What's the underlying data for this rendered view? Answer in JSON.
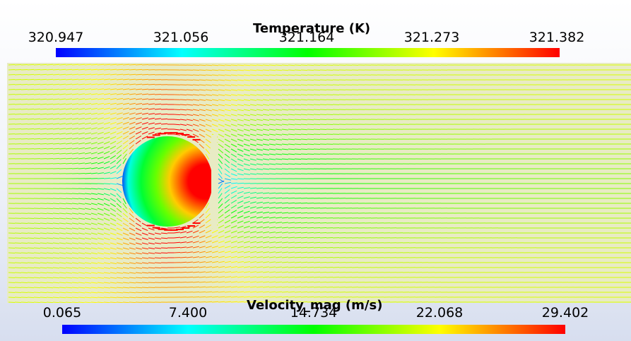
{
  "temperature_legend": {
    "title": "Temperature (K)",
    "ticks": [
      "320.947",
      "321.056",
      "321.164",
      "321.273",
      "321.382"
    ]
  },
  "velocity_legend": {
    "title": "Velocity_mag (m/s)",
    "ticks": [
      "0.065",
      "7.400",
      "14.734",
      "22.068",
      "29.402"
    ]
  },
  "colormap": [
    "#0000ff",
    "#00ffff",
    "#00ff00",
    "#ffff00",
    "#ff0000"
  ]
}
